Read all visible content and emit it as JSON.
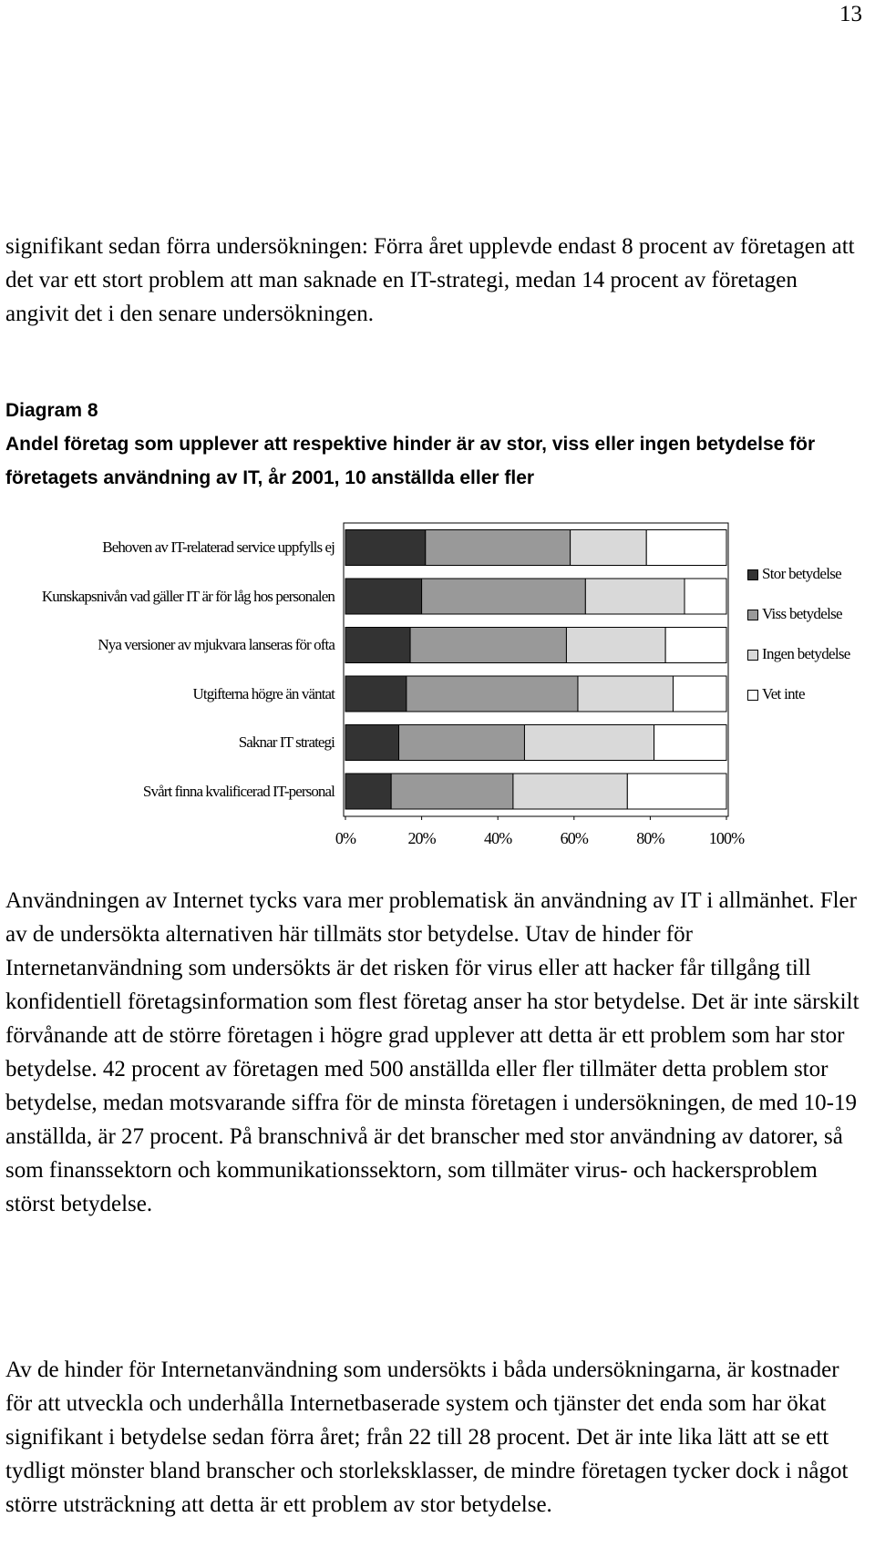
{
  "page_number": "13",
  "paragraphs": [
    "signifikant sedan förra undersökningen: Förra året upplevde endast 8 procent av företagen att det var ett stort problem att man saknade en IT-strategi, medan 14 procent av företagen angivit det i den senare undersökningen.",
    "Användningen av Internet tycks vara mer problematisk än användning av IT i allmänhet. Fler av de undersökta alternativen här tillmäts stor betydelse. Utav de hinder för Internetanvändning som undersökts är det risken för virus eller att hacker får tillgång till konfidentiell företagsinformation som flest företag anser ha stor betydelse. Det är inte särskilt förvånande att de större företagen i högre grad upplever att detta är ett problem som har stor betydelse. 42 procent av företagen med 500 anställda eller fler tillmäter detta problem stor betydelse, medan motsvarande siffra för de minsta företagen i undersökningen, de med 10-19 anställda, är 27 procent. På branschnivå är det branscher med stor användning av datorer, så som finanssektorn och kommunikationssektorn, som tillmäter virus- och hackersproblem störst betydelse.",
    "Av de hinder för Internetanvändning som undersökts i båda undersökningarna, är kostnader för att utveckla och underhålla Internetbaserade system och tjänster det enda som har ökat signifikant i betydelse sedan förra året; från 22 till 28 procent. Det är inte lika lätt att se ett tydligt mönster bland branscher och storleksklasser, de mindre företagen tycker dock i något större utsträckning att detta är ett problem av stor betydelse."
  ],
  "chart_data": {
    "type": "stacked-bar-horizontal",
    "label": "Diagram 8",
    "title": "Andel företag som upplever att respektive hinder är av stor, viss eller ingen betydelse för företagets användning av IT, år 2001, 10 anställda eller fler",
    "categories": [
      "Behoven av IT-relaterad service uppfylls ej",
      "Kunskapsnivån vad gäller IT är för låg hos personalen",
      "Nya versioner av mjukvara lanseras för ofta",
      "Utgifterna högre än väntat",
      "Saknar IT strategi",
      "Svårt finna kvalificerad IT-personal"
    ],
    "series": [
      {
        "name": "Stor betydelse",
        "color": "#333333",
        "values": [
          21,
          20,
          17,
          16,
          14,
          12
        ]
      },
      {
        "name": "Viss betydelse",
        "color": "#999999",
        "values": [
          38,
          43,
          41,
          45,
          33,
          32
        ]
      },
      {
        "name": "Ingen betydelse",
        "color": "#d9d9d9",
        "values": [
          20,
          26,
          26,
          25,
          34,
          30
        ]
      },
      {
        "name": "Vet inte",
        "color": "#ffffff",
        "values": [
          21,
          11,
          16,
          14,
          19,
          26
        ]
      }
    ],
    "xlim": [
      0,
      100
    ],
    "xticks": [
      {
        "value": 0,
        "label": "0%"
      },
      {
        "value": 20,
        "label": "20%"
      },
      {
        "value": 40,
        "label": "40%"
      },
      {
        "value": 60,
        "label": "60%"
      },
      {
        "value": 80,
        "label": "80%"
      },
      {
        "value": 100,
        "label": "100%"
      }
    ],
    "legend": "right",
    "grid": false
  }
}
